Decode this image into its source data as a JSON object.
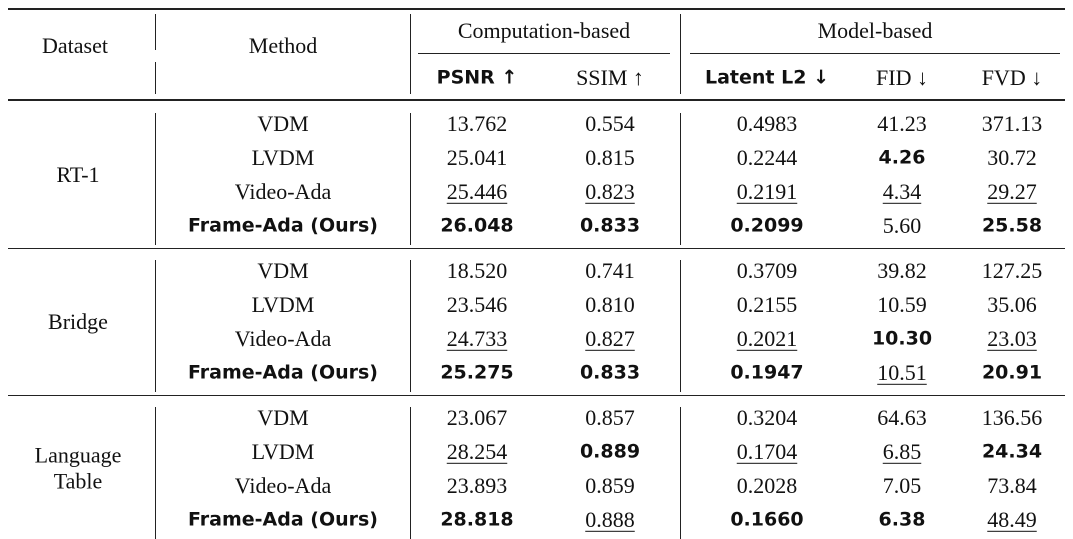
{
  "header": {
    "dataset": "Dataset",
    "method": "Method",
    "groups": [
      {
        "label": "Computation-based",
        "metrics": [
          {
            "text": "PSNR ↑",
            "style": "bold"
          },
          "SSIM ↑"
        ]
      },
      {
        "label": "Model-based",
        "metrics": [
          {
            "text": "Latent L2 ↓",
            "style": "bold"
          },
          "FID ↓",
          "FVD ↓"
        ]
      }
    ]
  },
  "table": {
    "groups": [
      {
        "dataset": "RT-1",
        "rows": [
          [
            "VDM",
            "13.762",
            "0.554",
            "0.4983",
            "41.23",
            "371.13"
          ],
          [
            "LVDM",
            "25.041",
            "0.815",
            "0.2244",
            {
              "text": "4.26",
              "style": "bold"
            },
            "30.72"
          ],
          [
            "Video-Ada",
            {
              "text": "25.446",
              "style": "underline"
            },
            {
              "text": "0.823",
              "style": "underline"
            },
            {
              "text": "0.2191",
              "style": "underline"
            },
            {
              "text": "4.34",
              "style": "underline"
            },
            {
              "text": "29.27",
              "style": "underline"
            }
          ],
          [
            {
              "text": "Frame-Ada (Ours)",
              "style": "bold"
            },
            {
              "text": "26.048",
              "style": "bold"
            },
            {
              "text": "0.833",
              "style": "bold"
            },
            {
              "text": "0.2099",
              "style": "bold"
            },
            "5.60",
            {
              "text": "25.58",
              "style": "bold"
            }
          ]
        ]
      },
      {
        "dataset": "Bridge",
        "rows": [
          [
            "VDM",
            "18.520",
            "0.741",
            "0.3709",
            "39.82",
            "127.25"
          ],
          [
            "LVDM",
            "23.546",
            "0.810",
            "0.2155",
            "10.59",
            "35.06"
          ],
          [
            "Video-Ada",
            {
              "text": "24.733",
              "style": "underline"
            },
            {
              "text": "0.827",
              "style": "underline"
            },
            {
              "text": "0.2021",
              "style": "underline"
            },
            {
              "text": "10.30",
              "style": "bold"
            },
            {
              "text": "23.03",
              "style": "underline"
            }
          ],
          [
            {
              "text": "Frame-Ada (Ours)",
              "style": "bold"
            },
            {
              "text": "25.275",
              "style": "bold"
            },
            {
              "text": "0.833",
              "style": "bold"
            },
            {
              "text": "0.1947",
              "style": "bold"
            },
            {
              "text": "10.51",
              "style": "underline"
            },
            {
              "text": "20.91",
              "style": "bold"
            }
          ]
        ]
      },
      {
        "dataset": "Language Table",
        "rows": [
          [
            "VDM",
            "23.067",
            "0.857",
            "0.3204",
            "64.63",
            "136.56"
          ],
          [
            "LVDM",
            {
              "text": "28.254",
              "style": "underline"
            },
            {
              "text": "0.889",
              "style": "bold"
            },
            {
              "text": "0.1704",
              "style": "underline"
            },
            {
              "text": "6.85",
              "style": "underline"
            },
            {
              "text": "24.34",
              "style": "bold"
            }
          ],
          [
            "Video-Ada",
            "23.893",
            "0.859",
            "0.2028",
            "7.05",
            "73.84"
          ],
          [
            {
              "text": "Frame-Ada (Ours)",
              "style": "bold"
            },
            {
              "text": "28.818",
              "style": "bold"
            },
            {
              "text": "0.888",
              "style": "underline"
            },
            {
              "text": "0.1660",
              "style": "bold"
            },
            {
              "text": "6.38",
              "style": "bold"
            },
            {
              "text": "48.49",
              "style": "underline"
            }
          ]
        ]
      }
    ]
  }
}
